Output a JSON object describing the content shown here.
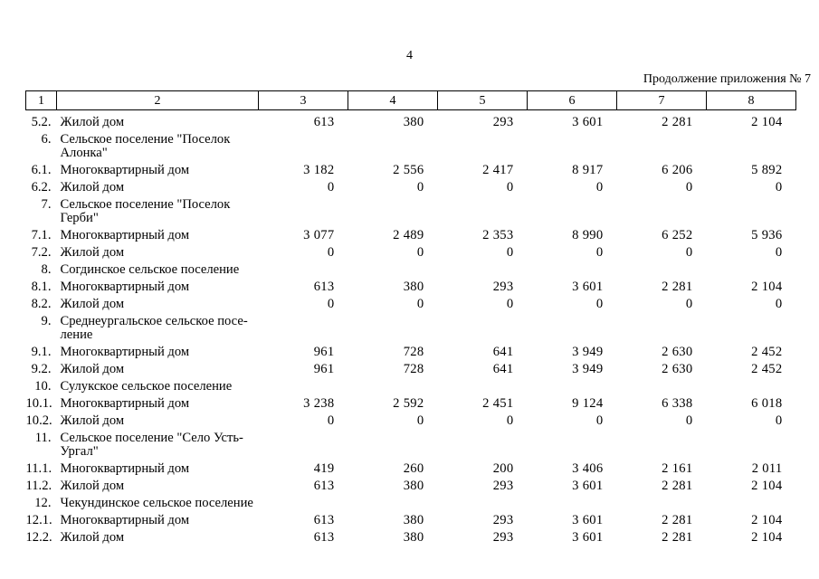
{
  "page": {
    "number": "4",
    "continuation_note": "Продолжение приложения № 7"
  },
  "colors": {
    "text": "#000000",
    "background": "#ffffff",
    "table_border": "#000000"
  },
  "table": {
    "columns": [
      "1",
      "2",
      "3",
      "4",
      "5",
      "6",
      "7",
      "8"
    ],
    "rows": [
      {
        "num": "5.2.",
        "name": "Жилой дом",
        "values": [
          "613",
          "380",
          "293",
          "3 601",
          "2 281",
          "2 104"
        ]
      },
      {
        "num": "6.",
        "name": "Сельское поселение \"Поселок\nАлонка\"",
        "values": []
      },
      {
        "num": "6.1.",
        "name": "Многоквартирный дом",
        "values": [
          "3 182",
          "2 556",
          "2 417",
          "8 917",
          "6 206",
          "5 892"
        ]
      },
      {
        "num": "6.2.",
        "name": "Жилой дом",
        "values": [
          "0",
          "0",
          "0",
          "0",
          "0",
          "0"
        ]
      },
      {
        "num": "7.",
        "name": "Сельское поселение \"Поселок\nГерби\"",
        "values": []
      },
      {
        "num": "7.1.",
        "name": "Многоквартирный дом",
        "values": [
          "3 077",
          "2 489",
          "2 353",
          "8 990",
          "6 252",
          "5 936"
        ]
      },
      {
        "num": "7.2.",
        "name": "Жилой дом",
        "values": [
          "0",
          "0",
          "0",
          "0",
          "0",
          "0"
        ]
      },
      {
        "num": "8.",
        "name": "Согдинское сельское поселение",
        "values": []
      },
      {
        "num": "8.1.",
        "name": "Многоквартирный дом",
        "values": [
          "613",
          "380",
          "293",
          "3 601",
          "2 281",
          "2 104"
        ]
      },
      {
        "num": "8.2.",
        "name": "Жилой дом",
        "values": [
          "0",
          "0",
          "0",
          "0",
          "0",
          "0"
        ]
      },
      {
        "num": "9.",
        "name": "Среднеургальское сельское посе-\nление",
        "values": []
      },
      {
        "num": "9.1.",
        "name": "Многоквартирный дом",
        "values": [
          "961",
          "728",
          "641",
          "3 949",
          "2 630",
          "2 452"
        ]
      },
      {
        "num": "9.2.",
        "name": "Жилой дом",
        "values": [
          "961",
          "728",
          "641",
          "3 949",
          "2 630",
          "2 452"
        ]
      },
      {
        "num": "10.",
        "name": "Сулукское сельское поселение",
        "values": []
      },
      {
        "num": "10.1.",
        "name": "Многоквартирный дом",
        "values": [
          "3 238",
          "2 592",
          "2 451",
          "9 124",
          "6 338",
          "6 018"
        ]
      },
      {
        "num": "10.2.",
        "name": "Жилой дом",
        "values": [
          "0",
          "0",
          "0",
          "0",
          "0",
          "0"
        ]
      },
      {
        "num": "11.",
        "name": "Сельское поселение \"Село Усть-\nУргал\"",
        "values": []
      },
      {
        "num": "11.1.",
        "name": "Многоквартирный дом",
        "values": [
          "419",
          "260",
          "200",
          "3 406",
          "2 161",
          "2 011"
        ]
      },
      {
        "num": "11.2.",
        "name": "Жилой дом",
        "values": [
          "613",
          "380",
          "293",
          "3 601",
          "2 281",
          "2 104"
        ]
      },
      {
        "num": "12.",
        "name": "Чекундинское сельское поселение",
        "values": []
      },
      {
        "num": "12.1.",
        "name": "Многоквартирный дом",
        "values": [
          "613",
          "380",
          "293",
          "3 601",
          "2 281",
          "2 104"
        ]
      },
      {
        "num": "12.2.",
        "name": "Жилой дом",
        "values": [
          "613",
          "380",
          "293",
          "3 601",
          "2 281",
          "2 104"
        ]
      }
    ]
  }
}
